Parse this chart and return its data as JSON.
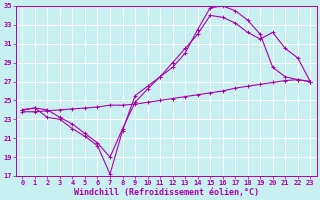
{
  "xlabel": "Windchill (Refroidissement éolien,°C)",
  "bg_color": "#c8f0f0",
  "grid_color": "#a0d8d8",
  "line_color": "#aa00aa",
  "xlim": [
    -0.5,
    23.5
  ],
  "ylim": [
    17,
    35
  ],
  "xticks": [
    0,
    1,
    2,
    3,
    4,
    5,
    6,
    7,
    8,
    9,
    10,
    11,
    12,
    13,
    14,
    15,
    16,
    17,
    18,
    19,
    20,
    21,
    22,
    23
  ],
  "yticks": [
    17,
    19,
    21,
    23,
    25,
    27,
    29,
    31,
    33,
    35
  ],
  "line1_x": [
    0,
    1,
    2,
    3,
    4,
    5,
    6,
    7,
    8,
    9,
    10,
    11,
    12,
    13,
    14,
    15,
    16,
    17,
    18,
    19,
    20,
    21,
    22,
    23
  ],
  "line1_y": [
    24.0,
    24.2,
    23.2,
    23.0,
    22.0,
    21.2,
    20.2,
    17.2,
    21.8,
    25.5,
    26.5,
    27.5,
    28.5,
    30.0,
    32.5,
    34.8,
    35.0,
    34.5,
    33.5,
    32.0,
    28.5,
    27.5,
    27.2,
    27.0
  ],
  "line2_x": [
    0,
    1,
    2,
    3,
    4,
    5,
    6,
    7,
    8,
    9,
    10,
    11,
    12,
    13,
    14,
    15,
    16,
    17,
    18,
    19,
    20,
    21,
    22,
    23
  ],
  "line2_y": [
    24.0,
    24.2,
    24.0,
    23.2,
    22.5,
    21.5,
    20.5,
    19.0,
    22.0,
    24.8,
    26.2,
    27.5,
    29.0,
    30.5,
    32.0,
    34.0,
    33.8,
    33.2,
    32.2,
    31.5,
    32.2,
    30.5,
    29.5,
    27.0
  ],
  "line3_x": [
    0,
    1,
    2,
    3,
    4,
    5,
    6,
    7,
    8,
    9,
    10,
    11,
    12,
    13,
    14,
    15,
    16,
    17,
    18,
    19,
    20,
    21,
    22,
    23
  ],
  "line3_y": [
    23.8,
    23.8,
    23.9,
    24.0,
    24.1,
    24.2,
    24.3,
    24.5,
    24.5,
    24.6,
    24.8,
    25.0,
    25.2,
    25.4,
    25.6,
    25.8,
    26.0,
    26.3,
    26.5,
    26.7,
    26.9,
    27.1,
    27.2,
    27.0
  ],
  "marker": "+",
  "markersize": 3,
  "linewidth": 0.8,
  "tick_fontsize": 5,
  "xlabel_fontsize": 6
}
